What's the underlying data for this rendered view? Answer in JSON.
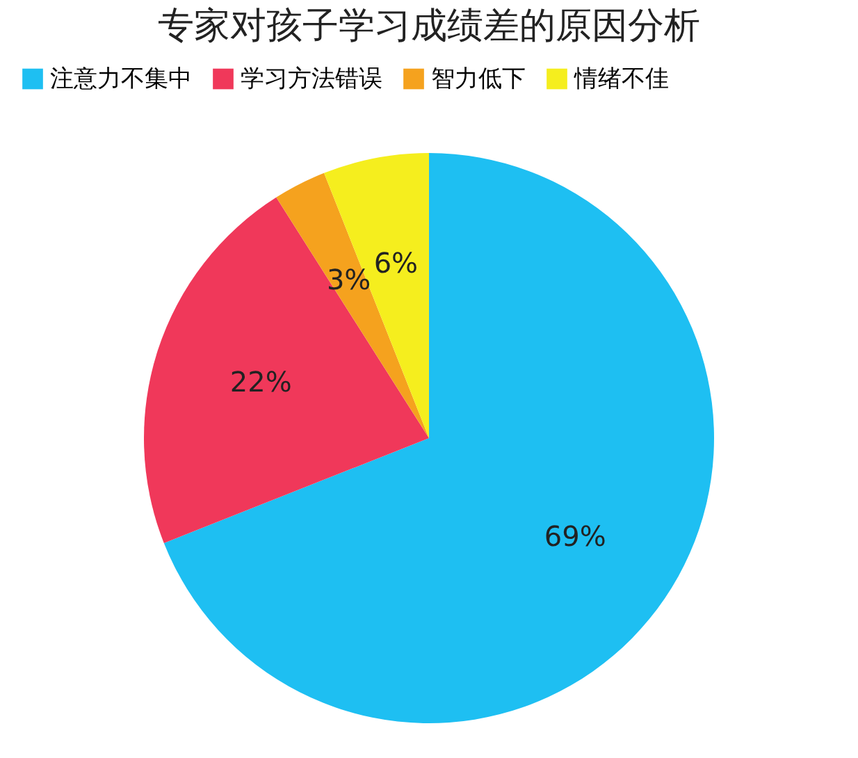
{
  "chart_data": {
    "type": "pie",
    "title": "专家对孩子学习成绩差的原因分析",
    "categories": [
      "注意力不集中",
      "学习方法错误",
      "智力低下",
      "情绪不佳"
    ],
    "values": [
      69,
      22,
      3,
      6
    ],
    "colors": [
      "#1ebff2",
      "#f0385a",
      "#f5a21e",
      "#f5ee1e"
    ],
    "value_labels": [
      "69%",
      "22%",
      "3%",
      "6%"
    ],
    "legend": "top"
  }
}
